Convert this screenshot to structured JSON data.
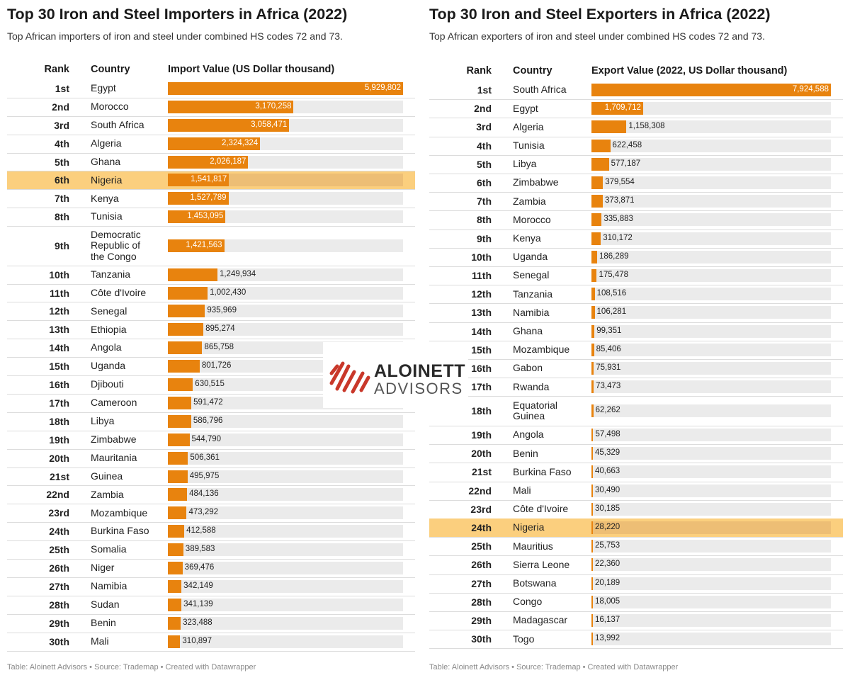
{
  "watermark": {
    "line1": "ALOINETT",
    "line2": "ADVISORS",
    "accent": "#c9382a"
  },
  "colors": {
    "bar": "#e8830e",
    "track": "#ebebeb",
    "highlight": "#fbcf7e"
  },
  "chart_data": [
    {
      "type": "table",
      "title": "Top 30 Iron and Steel Importers in Africa (2022)",
      "subtitle": "Top African importers of iron and steel under combined HS codes 72 and 73.",
      "columns": [
        "Rank",
        "Country",
        "Import Value (US Dollar thousand)"
      ],
      "footer": "Table: Aloinett Advisors • Source: Trademap • Created with Datawrapper",
      "highlight": "Nigeria",
      "rows": [
        {
          "rank": "1st",
          "country": "Egypt",
          "value": 5929802,
          "label": "5,929,802"
        },
        {
          "rank": "2nd",
          "country": "Morocco",
          "value": 3170258,
          "label": "3,170,258"
        },
        {
          "rank": "3rd",
          "country": "South Africa",
          "value": 3058471,
          "label": "3,058,471"
        },
        {
          "rank": "4th",
          "country": "Algeria",
          "value": 2324324,
          "label": "2,324,324"
        },
        {
          "rank": "5th",
          "country": "Ghana",
          "value": 2026187,
          "label": "2,026,187"
        },
        {
          "rank": "6th",
          "country": "Nigeria",
          "value": 1541817,
          "label": "1,541,817"
        },
        {
          "rank": "7th",
          "country": "Kenya",
          "value": 1527789,
          "label": "1,527,789"
        },
        {
          "rank": "8th",
          "country": "Tunisia",
          "value": 1453095,
          "label": "1,453,095"
        },
        {
          "rank": "9th",
          "country": "Democratic\nRepublic of\nthe Congo",
          "value": 1421563,
          "label": "1,421,563"
        },
        {
          "rank": "10th",
          "country": "Tanzania",
          "value": 1249934,
          "label": "1,249,934"
        },
        {
          "rank": "11th",
          "country": "Côte d'Ivoire",
          "value": 1002430,
          "label": "1,002,430"
        },
        {
          "rank": "12th",
          "country": "Senegal",
          "value": 935969,
          "label": "935,969"
        },
        {
          "rank": "13th",
          "country": "Ethiopia",
          "value": 895274,
          "label": "895,274"
        },
        {
          "rank": "14th",
          "country": "Angola",
          "value": 865758,
          "label": "865,758"
        },
        {
          "rank": "15th",
          "country": "Uganda",
          "value": 801726,
          "label": "801,726"
        },
        {
          "rank": "16th",
          "country": "Djibouti",
          "value": 630515,
          "label": "630,515"
        },
        {
          "rank": "17th",
          "country": "Cameroon",
          "value": 591472,
          "label": "591,472"
        },
        {
          "rank": "18th",
          "country": "Libya",
          "value": 586796,
          "label": "586,796"
        },
        {
          "rank": "19th",
          "country": "Zimbabwe",
          "value": 544790,
          "label": "544,790"
        },
        {
          "rank": "20th",
          "country": "Mauritania",
          "value": 506361,
          "label": "506,361"
        },
        {
          "rank": "21st",
          "country": "Guinea",
          "value": 495975,
          "label": "495,975"
        },
        {
          "rank": "22nd",
          "country": "Zambia",
          "value": 484136,
          "label": "484,136"
        },
        {
          "rank": "23rd",
          "country": "Mozambique",
          "value": 473292,
          "label": "473,292"
        },
        {
          "rank": "24th",
          "country": "Burkina Faso",
          "value": 412588,
          "label": "412,588"
        },
        {
          "rank": "25th",
          "country": "Somalia",
          "value": 389583,
          "label": "389,583"
        },
        {
          "rank": "26th",
          "country": "Niger",
          "value": 369476,
          "label": "369,476"
        },
        {
          "rank": "27th",
          "country": "Namibia",
          "value": 342149,
          "label": "342,149"
        },
        {
          "rank": "28th",
          "country": "Sudan",
          "value": 341139,
          "label": "341,139"
        },
        {
          "rank": "29th",
          "country": "Benin",
          "value": 323488,
          "label": "323,488"
        },
        {
          "rank": "30th",
          "country": "Mali",
          "value": 310897,
          "label": "310,897"
        }
      ]
    },
    {
      "type": "table",
      "title": "Top 30 Iron and Steel Exporters in Africa (2022)",
      "subtitle": "Top African exporters of iron and steel under combined HS codes 72 and 73.",
      "columns": [
        "Rank",
        "Country",
        "Export Value (2022, US Dollar thousand)"
      ],
      "footer": "Table: Aloinett Advisors • Source: Trademap • Created with Datawrapper",
      "highlight": "Nigeria",
      "rows": [
        {
          "rank": "1st",
          "country": "South Africa",
          "value": 7924588,
          "label": "7,924,588"
        },
        {
          "rank": "2nd",
          "country": "Egypt",
          "value": 1709712,
          "label": "1,709,712"
        },
        {
          "rank": "3rd",
          "country": "Algeria",
          "value": 1158308,
          "label": "1,158,308"
        },
        {
          "rank": "4th",
          "country": "Tunisia",
          "value": 622458,
          "label": "622,458"
        },
        {
          "rank": "5th",
          "country": "Libya",
          "value": 577187,
          "label": "577,187"
        },
        {
          "rank": "6th",
          "country": "Zimbabwe",
          "value": 379554,
          "label": "379,554"
        },
        {
          "rank": "7th",
          "country": "Zambia",
          "value": 373871,
          "label": "373,871"
        },
        {
          "rank": "8th",
          "country": "Morocco",
          "value": 335883,
          "label": "335,883"
        },
        {
          "rank": "9th",
          "country": "Kenya",
          "value": 310172,
          "label": "310,172"
        },
        {
          "rank": "10th",
          "country": "Uganda",
          "value": 186289,
          "label": "186,289"
        },
        {
          "rank": "11th",
          "country": "Senegal",
          "value": 175478,
          "label": "175,478"
        },
        {
          "rank": "12th",
          "country": "Tanzania",
          "value": 108516,
          "label": "108,516"
        },
        {
          "rank": "13th",
          "country": "Namibia",
          "value": 106281,
          "label": "106,281"
        },
        {
          "rank": "14th",
          "country": "Ghana",
          "value": 99351,
          "label": "99,351"
        },
        {
          "rank": "15th",
          "country": "Mozambique",
          "value": 85406,
          "label": "85,406"
        },
        {
          "rank": "16th",
          "country": "Gabon",
          "value": 75931,
          "label": "75,931"
        },
        {
          "rank": "17th",
          "country": "Rwanda",
          "value": 73473,
          "label": "73,473"
        },
        {
          "rank": "18th",
          "country": "Equatorial\nGuinea",
          "value": 62262,
          "label": "62,262"
        },
        {
          "rank": "19th",
          "country": "Angola",
          "value": 57498,
          "label": "57,498"
        },
        {
          "rank": "20th",
          "country": "Benin",
          "value": 45329,
          "label": "45,329"
        },
        {
          "rank": "21st",
          "country": "Burkina Faso",
          "value": 40663,
          "label": "40,663"
        },
        {
          "rank": "22nd",
          "country": "Mali",
          "value": 30490,
          "label": "30,490"
        },
        {
          "rank": "23rd",
          "country": "Côte d'Ivoire",
          "value": 30185,
          "label": "30,185"
        },
        {
          "rank": "24th",
          "country": "Nigeria",
          "value": 28220,
          "label": "28,220"
        },
        {
          "rank": "25th",
          "country": "Mauritius",
          "value": 25753,
          "label": "25,753"
        },
        {
          "rank": "26th",
          "country": "Sierra Leone",
          "value": 22360,
          "label": "22,360"
        },
        {
          "rank": "27th",
          "country": "Botswana",
          "value": 20189,
          "label": "20,189"
        },
        {
          "rank": "28th",
          "country": "Congo",
          "value": 18005,
          "label": "18,005"
        },
        {
          "rank": "29th",
          "country": "Madagascar",
          "value": 16137,
          "label": "16,137"
        },
        {
          "rank": "30th",
          "country": "Togo",
          "value": 13992,
          "label": "13,992"
        }
      ]
    }
  ]
}
